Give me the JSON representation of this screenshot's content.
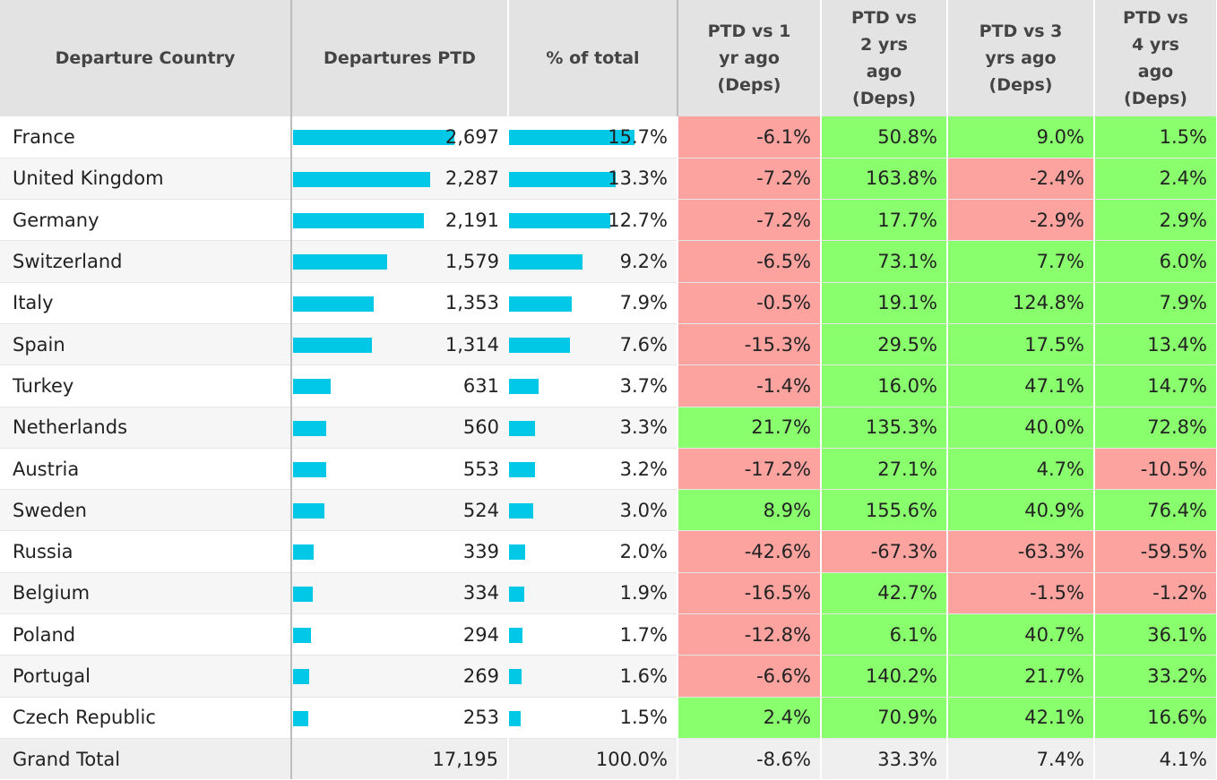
{
  "chart_data": {
    "type": "table",
    "columns": [
      "Departure Country",
      "Departures PTD",
      "% of total",
      "PTD vs 1 yr ago (Deps)",
      "PTD vs 2 yrs ago (Deps)",
      "PTD vs 3 yrs ago (Deps)",
      "PTD vs 4 yrs ago (Deps)"
    ],
    "header_lines": [
      [
        "Departure Country"
      ],
      [
        "Departures PTD"
      ],
      [
        "% of total"
      ],
      [
        "PTD vs 1",
        "yr ago",
        "(Deps)"
      ],
      [
        "PTD vs",
        "2 yrs",
        "ago",
        "(Deps)"
      ],
      [
        "PTD vs 3",
        "yrs ago",
        "(Deps)"
      ],
      [
        "PTD vs",
        "4 yrs",
        "ago",
        "(Deps)"
      ]
    ],
    "rows": [
      {
        "country": "France",
        "departures": 2697,
        "departures_label": "2,697",
        "share": 15.7,
        "share_label": "15.7%",
        "vs1": -6.1,
        "vs1_label": "-6.1%",
        "vs2": 50.8,
        "vs2_label": "50.8%",
        "vs3": 9.0,
        "vs3_label": "9.0%",
        "vs4": 1.5,
        "vs4_label": "1.5%"
      },
      {
        "country": "United Kingdom",
        "departures": 2287,
        "departures_label": "2,287",
        "share": 13.3,
        "share_label": "13.3%",
        "vs1": -7.2,
        "vs1_label": "-7.2%",
        "vs2": 163.8,
        "vs2_label": "163.8%",
        "vs3": -2.4,
        "vs3_label": "-2.4%",
        "vs4": 2.4,
        "vs4_label": "2.4%"
      },
      {
        "country": "Germany",
        "departures": 2191,
        "departures_label": "2,191",
        "share": 12.7,
        "share_label": "12.7%",
        "vs1": -7.2,
        "vs1_label": "-7.2%",
        "vs2": 17.7,
        "vs2_label": "17.7%",
        "vs3": -2.9,
        "vs3_label": "-2.9%",
        "vs4": 2.9,
        "vs4_label": "2.9%"
      },
      {
        "country": "Switzerland",
        "departures": 1579,
        "departures_label": "1,579",
        "share": 9.2,
        "share_label": "9.2%",
        "vs1": -6.5,
        "vs1_label": "-6.5%",
        "vs2": 73.1,
        "vs2_label": "73.1%",
        "vs3": 7.7,
        "vs3_label": "7.7%",
        "vs4": 6.0,
        "vs4_label": "6.0%"
      },
      {
        "country": "Italy",
        "departures": 1353,
        "departures_label": "1,353",
        "share": 7.9,
        "share_label": "7.9%",
        "vs1": -0.5,
        "vs1_label": "-0.5%",
        "vs2": 19.1,
        "vs2_label": "19.1%",
        "vs3": 124.8,
        "vs3_label": "124.8%",
        "vs4": 7.9,
        "vs4_label": "7.9%"
      },
      {
        "country": "Spain",
        "departures": 1314,
        "departures_label": "1,314",
        "share": 7.6,
        "share_label": "7.6%",
        "vs1": -15.3,
        "vs1_label": "-15.3%",
        "vs2": 29.5,
        "vs2_label": "29.5%",
        "vs3": 17.5,
        "vs3_label": "17.5%",
        "vs4": 13.4,
        "vs4_label": "13.4%"
      },
      {
        "country": "Turkey",
        "departures": 631,
        "departures_label": "631",
        "share": 3.7,
        "share_label": "3.7%",
        "vs1": -1.4,
        "vs1_label": "-1.4%",
        "vs2": 16.0,
        "vs2_label": "16.0%",
        "vs3": 47.1,
        "vs3_label": "47.1%",
        "vs4": 14.7,
        "vs4_label": "14.7%"
      },
      {
        "country": "Netherlands",
        "departures": 560,
        "departures_label": "560",
        "share": 3.3,
        "share_label": "3.3%",
        "vs1": 21.7,
        "vs1_label": "21.7%",
        "vs2": 135.3,
        "vs2_label": "135.3%",
        "vs3": 40.0,
        "vs3_label": "40.0%",
        "vs4": 72.8,
        "vs4_label": "72.8%"
      },
      {
        "country": "Austria",
        "departures": 553,
        "departures_label": "553",
        "share": 3.2,
        "share_label": "3.2%",
        "vs1": -17.2,
        "vs1_label": "-17.2%",
        "vs2": 27.1,
        "vs2_label": "27.1%",
        "vs3": 4.7,
        "vs3_label": "4.7%",
        "vs4": -10.5,
        "vs4_label": "-10.5%"
      },
      {
        "country": "Sweden",
        "departures": 524,
        "departures_label": "524",
        "share": 3.0,
        "share_label": "3.0%",
        "vs1": 8.9,
        "vs1_label": "8.9%",
        "vs2": 155.6,
        "vs2_label": "155.6%",
        "vs3": 40.9,
        "vs3_label": "40.9%",
        "vs4": 76.4,
        "vs4_label": "76.4%"
      },
      {
        "country": "Russia",
        "departures": 339,
        "departures_label": "339",
        "share": 2.0,
        "share_label": "2.0%",
        "vs1": -42.6,
        "vs1_label": "-42.6%",
        "vs2": -67.3,
        "vs2_label": "-67.3%",
        "vs3": -63.3,
        "vs3_label": "-63.3%",
        "vs4": -59.5,
        "vs4_label": "-59.5%"
      },
      {
        "country": "Belgium",
        "departures": 334,
        "departures_label": "334",
        "share": 1.9,
        "share_label": "1.9%",
        "vs1": -16.5,
        "vs1_label": "-16.5%",
        "vs2": 42.7,
        "vs2_label": "42.7%",
        "vs3": -1.5,
        "vs3_label": "-1.5%",
        "vs4": -1.2,
        "vs4_label": "-1.2%"
      },
      {
        "country": "Poland",
        "departures": 294,
        "departures_label": "294",
        "share": 1.7,
        "share_label": "1.7%",
        "vs1": -12.8,
        "vs1_label": "-12.8%",
        "vs2": 6.1,
        "vs2_label": "6.1%",
        "vs3": 40.7,
        "vs3_label": "40.7%",
        "vs4": 36.1,
        "vs4_label": "36.1%"
      },
      {
        "country": "Portugal",
        "departures": 269,
        "departures_label": "269",
        "share": 1.6,
        "share_label": "1.6%",
        "vs1": -6.6,
        "vs1_label": "-6.6%",
        "vs2": 140.2,
        "vs2_label": "140.2%",
        "vs3": 21.7,
        "vs3_label": "21.7%",
        "vs4": 33.2,
        "vs4_label": "33.2%"
      },
      {
        "country": "Czech Republic",
        "departures": 253,
        "departures_label": "253",
        "share": 1.5,
        "share_label": "1.5%",
        "vs1": 2.4,
        "vs1_label": "2.4%",
        "vs2": 70.9,
        "vs2_label": "70.9%",
        "vs3": 42.1,
        "vs3_label": "42.1%",
        "vs4": 16.6,
        "vs4_label": "16.6%"
      }
    ],
    "total": {
      "label": "Grand Total",
      "departures": 17195,
      "departures_label": "17,195",
      "share": 100.0,
      "share_label": "100.0%",
      "vs1": -8.6,
      "vs1_label": "-8.6%",
      "vs2": 33.3,
      "vs2_label": "33.3%",
      "vs3": 7.4,
      "vs3_label": "7.4%",
      "vs4": 4.1,
      "vs4_label": "4.1%"
    },
    "bar_color": "#00c8e6",
    "positive_color": "#8aff6e",
    "negative_color": "#fca3a0",
    "header_background": "#e3e3e3"
  }
}
